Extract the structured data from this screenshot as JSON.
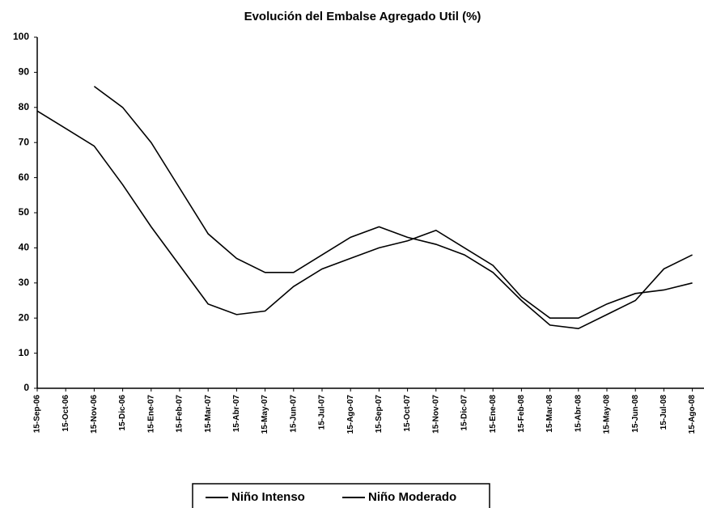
{
  "chart_data": {
    "type": "line",
    "title": "Evolución del Embalse Agregado Util (%)",
    "categories": [
      "15-Sep-06",
      "15-Oct-06",
      "15-Nov-06",
      "15-Dic-06",
      "15-Ene-07",
      "15-Feb-07",
      "15-Mar-07",
      "15-Abr-07",
      "15-May-07",
      "15-Jun-07",
      "15-Jul-07",
      "15-Ago-07",
      "15-Sep-07",
      "15-Oct-07",
      "15-Nov-07",
      "15-Dic-07",
      "15-Ene-08",
      "15-Feb-08",
      "15-Mar-08",
      "15-Abr-08",
      "15-May-08",
      "15-Jun-08",
      "15-Jul-08",
      "15-Ago-08"
    ],
    "series": [
      {
        "name": "Niño Intenso",
        "color": "#000000",
        "values": [
          79,
          74,
          69,
          58,
          46,
          35,
          24,
          21,
          22,
          29,
          34,
          37,
          40,
          42,
          45,
          40,
          35,
          26,
          20,
          20,
          24,
          27,
          28,
          30
        ]
      },
      {
        "name": "Niño Moderado",
        "color": "#000000",
        "values": [
          null,
          null,
          86,
          80,
          70,
          57,
          44,
          37,
          33,
          33,
          38,
          43,
          46,
          43,
          41,
          38,
          33,
          25,
          18,
          17,
          21,
          25,
          34,
          38
        ]
      }
    ],
    "ylim": [
      0,
      100
    ],
    "yticks": [
      0,
      10,
      20,
      30,
      40,
      50,
      60,
      70,
      80,
      90,
      100
    ],
    "grid": false,
    "legend": "bottom"
  }
}
